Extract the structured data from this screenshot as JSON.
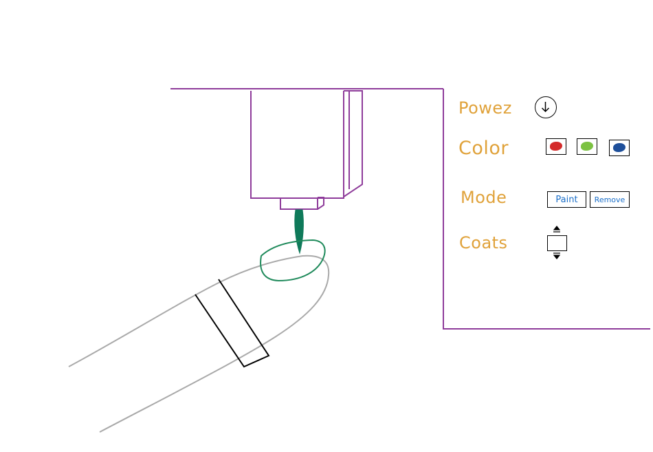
{
  "panel": {
    "power_label": "Powez",
    "color_label": "Color",
    "mode_label": "Mode",
    "coats_label": "Coats",
    "mode_paint": "Paint",
    "mode_remove": "Remove"
  },
  "colors": {
    "frame": "#8e3b9a",
    "label": "#e0a23a",
    "nail": "#1f8a5b",
    "nozzle": "#0f7a5a",
    "finger": "#a9a9a9",
    "mode_text": "#1b6fc9",
    "swatch_red": "#d42a2a",
    "swatch_green": "#7cc242",
    "swatch_blue": "#1e4f9a"
  },
  "icons": [
    "power-icon",
    "color-swatch-red",
    "color-swatch-green",
    "color-swatch-blue",
    "coats-up-arrow",
    "coats-down-arrow"
  ]
}
